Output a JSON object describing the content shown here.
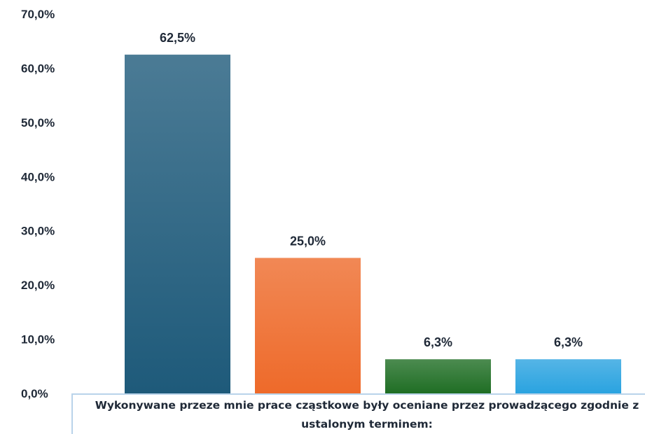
{
  "chart_data": {
    "type": "bar",
    "title": "",
    "xlabel": "",
    "ylabel": "",
    "categories": [
      "Wykonywane przeze mnie prace cząstkowe były oceniane przez prowadzącego zgodnie z ustalonym terminem:"
    ],
    "ylim": [
      0,
      70
    ],
    "y_ticks": [
      "0,0%",
      "10,0%",
      "20,0%",
      "30,0%",
      "40,0%",
      "50,0%",
      "60,0%",
      "70,0%"
    ],
    "grid": false,
    "legend": "none",
    "series": [
      {
        "values": [
          62.5
        ],
        "label": "62,5%",
        "color": "#1e5a7a"
      },
      {
        "values": [
          25.0
        ],
        "label": "25,0%",
        "color": "#ee6a2a"
      },
      {
        "values": [
          6.3
        ],
        "label": "6,3%",
        "color": "#1f6e24"
      },
      {
        "values": [
          6.3
        ],
        "label": "6,3%",
        "color": "#2aa3e0"
      }
    ]
  }
}
